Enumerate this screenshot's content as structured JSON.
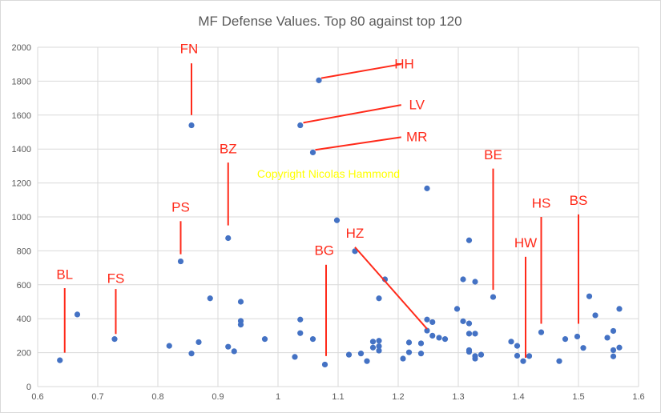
{
  "chart_data": {
    "type": "scatter",
    "title": "MF Defense Values. Top 80 against top 120",
    "watermark": "Copyright Nicolas Hammond",
    "xlim": [
      0.6,
      1.6
    ],
    "ylim": [
      0,
      2000
    ],
    "x_ticks": [
      "0.6",
      "0.7",
      "0.8",
      "0.9",
      "1",
      "1.1",
      "1.2",
      "1.3",
      "1.4",
      "1.5",
      "1.6"
    ],
    "y_ticks": [
      "0",
      "200",
      "400",
      "600",
      "800",
      "1000",
      "1200",
      "1400",
      "1600",
      "1800",
      "2000"
    ],
    "grid": true,
    "marker_color": "#4472c4",
    "annotation_color": "#ff2a1a",
    "points": [
      [
        0.637,
        155
      ],
      [
        0.666,
        425
      ],
      [
        0.728,
        280
      ],
      [
        0.819,
        240
      ],
      [
        0.838,
        738
      ],
      [
        0.856,
        195
      ],
      [
        0.856,
        1540
      ],
      [
        0.868,
        262
      ],
      [
        0.887,
        520
      ],
      [
        0.917,
        875
      ],
      [
        0.917,
        235
      ],
      [
        0.927,
        208
      ],
      [
        0.938,
        500
      ],
      [
        0.938,
        387
      ],
      [
        0.938,
        365
      ],
      [
        0.978,
        280
      ],
      [
        1.028,
        175
      ],
      [
        1.037,
        395
      ],
      [
        1.037,
        315
      ],
      [
        1.037,
        1540
      ],
      [
        1.058,
        280
      ],
      [
        1.058,
        1380
      ],
      [
        1.068,
        1805
      ],
      [
        1.078,
        130
      ],
      [
        1.098,
        980
      ],
      [
        1.118,
        188
      ],
      [
        1.128,
        798
      ],
      [
        1.138,
        195
      ],
      [
        1.148,
        150
      ],
      [
        1.158,
        265
      ],
      [
        1.158,
        230
      ],
      [
        1.168,
        520
      ],
      [
        1.168,
        270
      ],
      [
        1.168,
        238
      ],
      [
        1.168,
        212
      ],
      [
        1.178,
        632
      ],
      [
        1.208,
        165
      ],
      [
        1.218,
        260
      ],
      [
        1.218,
        202
      ],
      [
        1.238,
        255
      ],
      [
        1.238,
        195
      ],
      [
        1.248,
        395
      ],
      [
        1.248,
        330
      ],
      [
        1.248,
        1168
      ],
      [
        1.257,
        380
      ],
      [
        1.257,
        300
      ],
      [
        1.268,
        288
      ],
      [
        1.278,
        280
      ],
      [
        1.298,
        458
      ],
      [
        1.308,
        632
      ],
      [
        1.308,
        385
      ],
      [
        1.318,
        862
      ],
      [
        1.318,
        372
      ],
      [
        1.318,
        312
      ],
      [
        1.318,
        215
      ],
      [
        1.318,
        205
      ],
      [
        1.328,
        618
      ],
      [
        1.328,
        312
      ],
      [
        1.328,
        180
      ],
      [
        1.328,
        165
      ],
      [
        1.338,
        188
      ],
      [
        1.358,
        528
      ],
      [
        1.388,
        265
      ],
      [
        1.398,
        240
      ],
      [
        1.398,
        182
      ],
      [
        1.408,
        150
      ],
      [
        1.418,
        180
      ],
      [
        1.438,
        320
      ],
      [
        1.468,
        150
      ],
      [
        1.478,
        280
      ],
      [
        1.498,
        295
      ],
      [
        1.508,
        228
      ],
      [
        1.518,
        532
      ],
      [
        1.528,
        420
      ],
      [
        1.548,
        288
      ],
      [
        1.558,
        328
      ],
      [
        1.558,
        215
      ],
      [
        1.558,
        178
      ],
      [
        1.568,
        458
      ],
      [
        1.568,
        230
      ]
    ],
    "annotations": [
      {
        "label": "FN",
        "x": 0.856,
        "y1": 1905,
        "y2": 1600,
        "tx": 0.852,
        "ty": 1965
      },
      {
        "label": "HH",
        "x": 1.072,
        "y1": 1818,
        "x2": 1.205,
        "y2": 1900,
        "tx": 1.21,
        "ty": 1875
      },
      {
        "label": "LV",
        "x": 1.042,
        "y1": 1555,
        "x2": 1.205,
        "y2": 1660,
        "tx": 1.231,
        "ty": 1635
      },
      {
        "label": "MR",
        "x": 1.062,
        "y1": 1395,
        "x2": 1.205,
        "y2": 1470,
        "tx": 1.231,
        "ty": 1445
      },
      {
        "label": "BE",
        "x": 1.358,
        "y1": 1285,
        "y2": 570,
        "tx": 1.358,
        "ty": 1340
      },
      {
        "label": "BZ",
        "x": 0.917,
        "y1": 1320,
        "y2": 950,
        "tx": 0.917,
        "ty": 1375
      },
      {
        "label": "PS",
        "x": 0.838,
        "y1": 975,
        "y2": 780,
        "tx": 0.838,
        "ty": 1030
      },
      {
        "label": "HZ",
        "x": 1.128,
        "y1": 822,
        "x2": 1.248,
        "y2": 340,
        "tx": 1.128,
        "ty": 878
      },
      {
        "label": "HS",
        "x": 1.438,
        "y1": 1000,
        "y2": 370,
        "tx": 1.438,
        "ty": 1055
      },
      {
        "label": "BS",
        "x": 1.5,
        "y1": 1015,
        "y2": 370,
        "tx": 1.5,
        "ty": 1070
      },
      {
        "label": "HW",
        "x": 1.412,
        "y1": 765,
        "y2": 170,
        "tx": 1.412,
        "ty": 820
      },
      {
        "label": "BG",
        "x": 1.08,
        "y1": 718,
        "y2": 180,
        "tx": 1.077,
        "ty": 775
      },
      {
        "label": "BL",
        "x": 0.645,
        "y1": 580,
        "y2": 200,
        "tx": 0.645,
        "ty": 635
      },
      {
        "label": "FS",
        "x": 0.73,
        "y1": 575,
        "y2": 310,
        "tx": 0.73,
        "ty": 610
      }
    ]
  }
}
